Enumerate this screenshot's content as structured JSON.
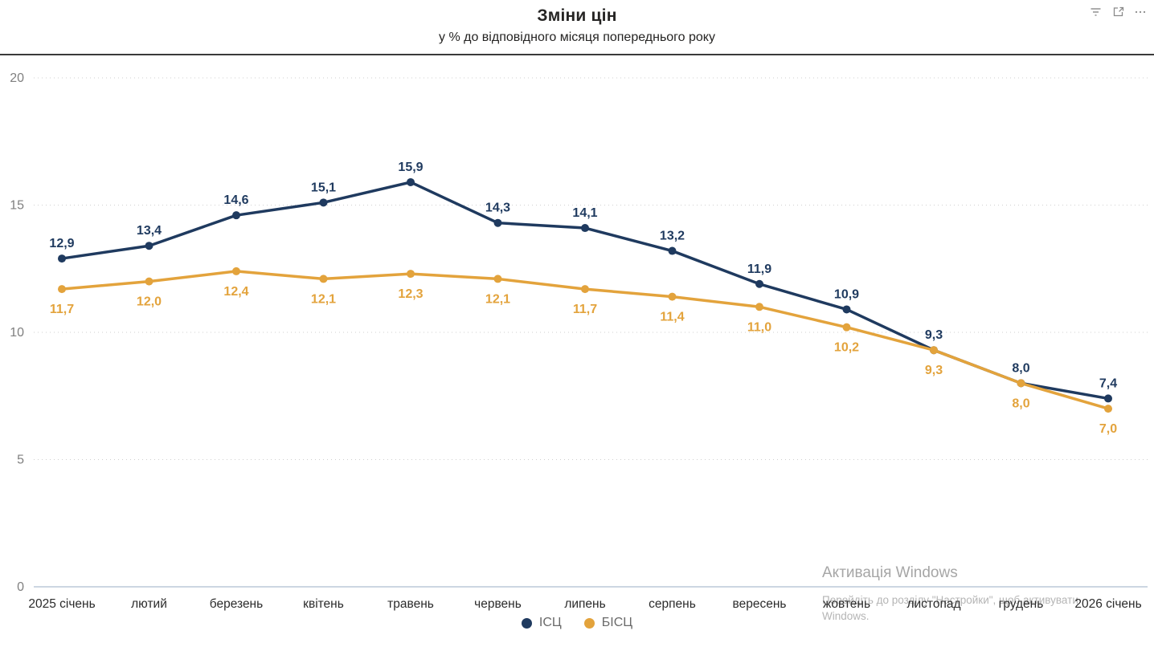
{
  "header": {
    "title": "Зміни цін",
    "subtitle": "у % до відповідного місяця попереднього року",
    "icons": [
      "filter-icon",
      "focus-mode-icon",
      "more-options-icon"
    ]
  },
  "chart_data": {
    "type": "line",
    "title": "Зміни цін",
    "subtitle": "у % до відповідного місяця попереднього року",
    "categories": [
      "2025 січень",
      "лютий",
      "березень",
      "квітень",
      "травень",
      "червень",
      "липень",
      "серпень",
      "вересень",
      "жовтень",
      "листопад",
      "грудень",
      "2026 січень"
    ],
    "series": [
      {
        "name": "ІСЦ",
        "color": "#1F3A5F",
        "values": [
          12.9,
          13.4,
          14.6,
          15.1,
          15.9,
          14.3,
          14.1,
          13.2,
          11.9,
          10.9,
          9.3,
          8.0,
          7.4
        ],
        "labels": [
          "12,9",
          "13,4",
          "14,6",
          "15,1",
          "15,9",
          "14,3",
          "14,1",
          "13,2",
          "11,9",
          "10,9",
          "9,3",
          "8,0",
          "7,4"
        ],
        "label_position": "above"
      },
      {
        "name": "БІСЦ",
        "color": "#E3A33C",
        "values": [
          11.7,
          12.0,
          12.4,
          12.1,
          12.3,
          12.1,
          11.7,
          11.4,
          11.0,
          10.2,
          9.3,
          8.0,
          7.0
        ],
        "labels": [
          "11,7",
          "12,0",
          "12,4",
          "12,1",
          "12,3",
          "12,1",
          "11,7",
          "11,4",
          "11,0",
          "10,2",
          "9,3",
          "8,0",
          "7,0"
        ],
        "label_position": "below"
      }
    ],
    "xlabel": "",
    "ylabel": "",
    "ylim": [
      0,
      20
    ],
    "yticks": [
      0,
      5,
      10,
      15,
      20
    ],
    "grid": "horizontal-dotted",
    "legend_position": "bottom-center"
  },
  "legend": {
    "items": [
      {
        "label": "ІСЦ",
        "color": "#1F3A5F"
      },
      {
        "label": "БІСЦ",
        "color": "#E3A33C"
      }
    ]
  },
  "watermark": {
    "line1": "Активація Windows",
    "line2": "Перейдіть до розділу \"Настройки\", щоб активувати Windows."
  }
}
